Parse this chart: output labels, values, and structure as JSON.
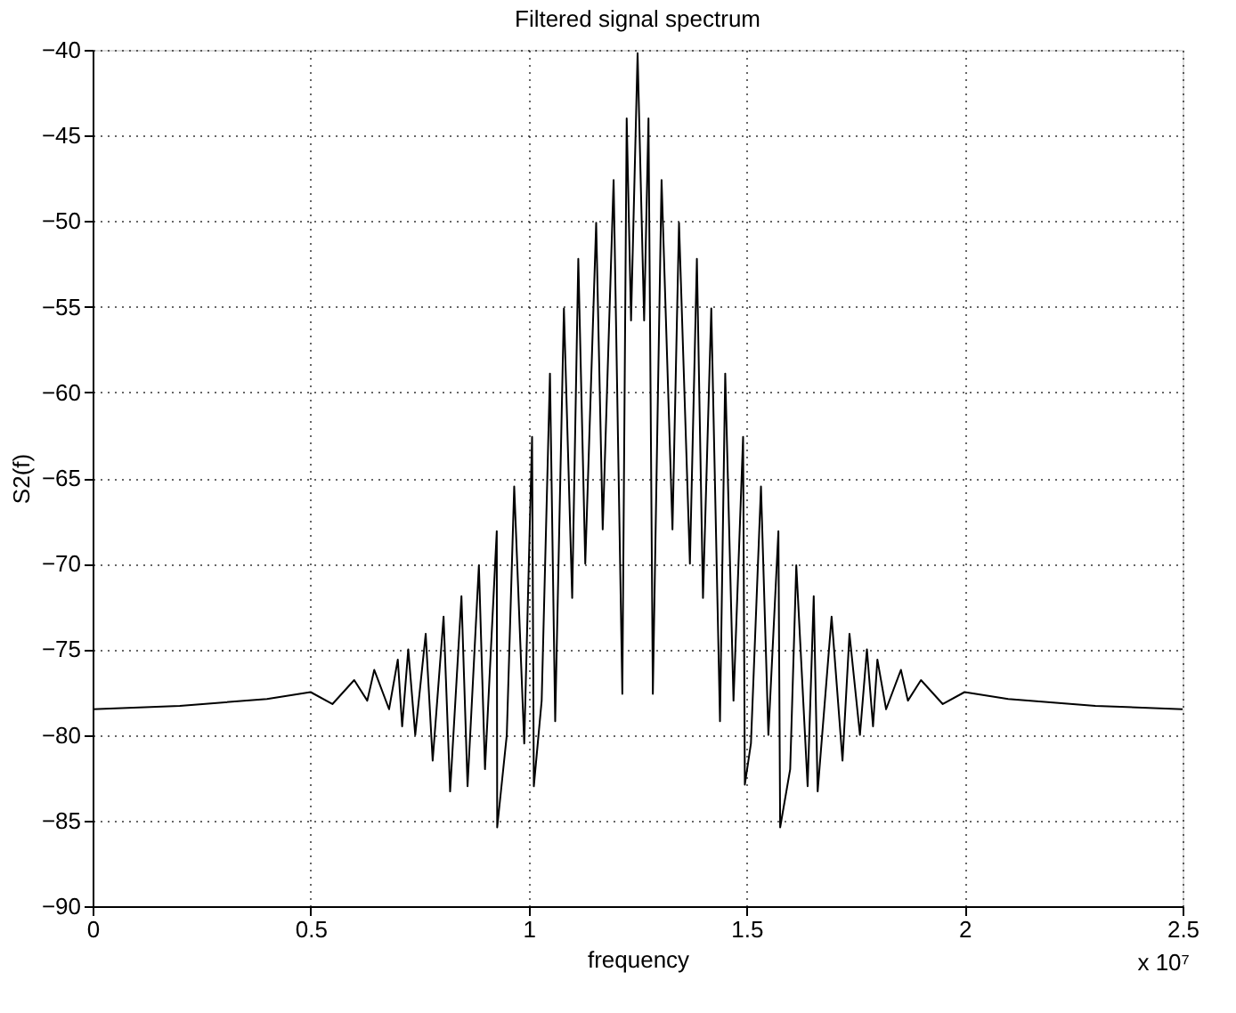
{
  "chart_data": {
    "type": "line",
    "title": "Filtered signal spectrum",
    "xlabel": "frequency",
    "ylabel": "S2(f)",
    "annotations": [
      "x 10⁷"
    ],
    "x": [
      0,
      0.2,
      0.4,
      0.5,
      0.55,
      0.6,
      0.63,
      0.646,
      0.68,
      0.7,
      0.71,
      0.724,
      0.74,
      0.764,
      0.78,
      0.805,
      0.82,
      0.846,
      0.86,
      0.886,
      0.9,
      0.927,
      0.928,
      0.95,
      0.967,
      0.99,
      1.008,
      1.012,
      1.03,
      1.049,
      1.061,
      1.081,
      1.1,
      1.114,
      1.13,
      1.155,
      1.17,
      1.195,
      1.215,
      1.225,
      1.235,
      1.25,
      1.265,
      1.275,
      1.285,
      1.305,
      1.33,
      1.345,
      1.37,
      1.386,
      1.4,
      1.419,
      1.439,
      1.451,
      1.47,
      1.492,
      1.496,
      1.51,
      1.533,
      1.55,
      1.573,
      1.577,
      1.6,
      1.614,
      1.64,
      1.654,
      1.663,
      1.695,
      1.72,
      1.736,
      1.76,
      1.776,
      1.79,
      1.8,
      1.82,
      1.854,
      1.87,
      1.9,
      1.95,
      2.0,
      2.1,
      2.3,
      2.5
    ],
    "series": [
      {
        "color": "#000000",
        "values": [
          -78.5,
          -78.3,
          -77.9,
          -77.5,
          -78.2,
          -76.8,
          -78.0,
          -76.2,
          -78.5,
          -75.6,
          -79.5,
          -75.0,
          -80.0,
          -74.1,
          -81.5,
          -73.1,
          -83.3,
          -71.9,
          -83.0,
          -70.1,
          -82.0,
          -68.1,
          -85.4,
          -80,
          -65.5,
          -80.5,
          -62.6,
          -83.0,
          -78,
          -58.9,
          -79.2,
          -55.1,
          -72,
          -52.2,
          -70,
          -50.1,
          -68,
          -47.6,
          -77.6,
          -44,
          -55.8,
          -40.2,
          -55.8,
          -44,
          -77.6,
          -47.6,
          -68,
          -50.1,
          -70,
          -52.2,
          -72,
          -55.1,
          -79.2,
          -58.9,
          -78,
          -62.6,
          -82.9,
          -80.5,
          -65.5,
          -80,
          -68.1,
          -85.4,
          -82,
          -70.1,
          -83,
          -71.9,
          -83.3,
          -73.1,
          -81.5,
          -74.1,
          -80,
          -75,
          -79.5,
          -75.6,
          -78.5,
          -76.2,
          -78,
          -76.8,
          -78.2,
          -77.5,
          -77.9,
          -78.3,
          -78.5
        ]
      }
    ],
    "xlim": [
      0,
      2.5
    ],
    "xticks": [
      0,
      0.5,
      1,
      1.5,
      2,
      2.5
    ],
    "ylim": [
      -90,
      -40
    ],
    "yticks": [
      -90,
      -85,
      -80,
      -75,
      -70,
      -65,
      -60,
      -55,
      -50,
      -45,
      -40
    ],
    "grid": true,
    "line_style": "solid"
  }
}
